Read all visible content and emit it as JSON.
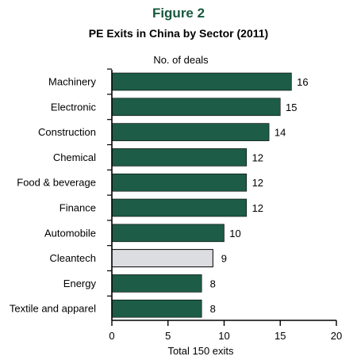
{
  "figure_label": "Figure 2",
  "colors": {
    "accent": "#17593f",
    "bar": "#1d5c46",
    "highlight_bar": "#dcdde0"
  },
  "chart_data": {
    "type": "bar",
    "orientation": "horizontal",
    "title": "PE Exits in China by Sector (2011)",
    "series_label": "No. of deals",
    "xlabel": "Total 150 exits",
    "categories": [
      "Machinery",
      "Electronic",
      "Construction",
      "Chemical",
      "Food & beverage",
      "Finance",
      "Automobile",
      "Cleantech",
      "Energy",
      "Textile and apparel"
    ],
    "values": [
      16,
      15,
      14,
      12,
      12,
      12,
      10,
      9,
      8,
      8
    ],
    "highlight": [
      "Cleantech"
    ],
    "xlim": [
      0,
      20
    ],
    "xticks": [
      0,
      5,
      10,
      15,
      20
    ],
    "grid": false,
    "legend": "none"
  }
}
